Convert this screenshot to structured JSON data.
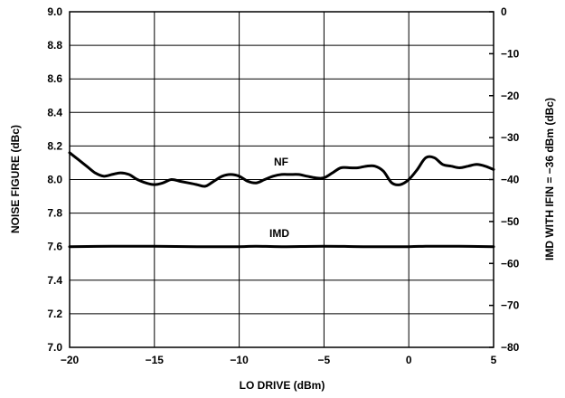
{
  "chart_data": {
    "type": "line",
    "xlabel": "LO DRIVE (dBm)",
    "ylabel_left": "NOISE FIGURE (dBc)",
    "ylabel_right": "IMD WITH IFIN = −36 dBm (dBc)",
    "xlim": [
      -20,
      5
    ],
    "ylim_left": [
      7.0,
      9.0
    ],
    "ylim_right": [
      -80,
      0
    ],
    "grid": true,
    "x_ticks": [
      "−20",
      "−15",
      "−10",
      "−5",
      "0",
      "5"
    ],
    "y_left_ticks": [
      "7.0",
      "7.2",
      "7.4",
      "7.6",
      "7.8",
      "8.0",
      "8.2",
      "8.4",
      "8.6",
      "8.8",
      "9.0"
    ],
    "y_right_ticks": [
      "−80",
      "−70",
      "−60",
      "−50",
      "−40",
      "−30",
      "−20",
      "−10",
      "0"
    ],
    "series": [
      {
        "name": "NF",
        "axis": "left",
        "x": [
          -20,
          -19.5,
          -19,
          -18.5,
          -18,
          -17.5,
          -17,
          -16.5,
          -16,
          -15.5,
          -15,
          -14.5,
          -14,
          -13.5,
          -13,
          -12.5,
          -12,
          -11.5,
          -11,
          -10.5,
          -10,
          -9.5,
          -9,
          -8.5,
          -8,
          -7.5,
          -7,
          -6.5,
          -6,
          -5.5,
          -5,
          -4.5,
          -4,
          -3.5,
          -3,
          -2.5,
          -2,
          -1.5,
          -1,
          -0.5,
          0,
          0.5,
          1,
          1.5,
          2,
          2.5,
          3,
          3.5,
          4,
          4.5,
          5
        ],
        "values": [
          8.16,
          8.12,
          8.08,
          8.04,
          8.02,
          8.03,
          8.04,
          8.03,
          8.0,
          7.98,
          7.97,
          7.98,
          8.0,
          7.99,
          7.98,
          7.97,
          7.96,
          7.99,
          8.02,
          8.03,
          8.02,
          7.99,
          7.98,
          8.0,
          8.02,
          8.03,
          8.03,
          8.03,
          8.02,
          8.01,
          8.01,
          8.04,
          8.07,
          8.07,
          8.07,
          8.08,
          8.08,
          8.05,
          7.98,
          7.97,
          8.0,
          8.06,
          8.13,
          8.13,
          8.09,
          8.08,
          8.07,
          8.08,
          8.09,
          8.08,
          8.06
        ]
      },
      {
        "name": "IMD",
        "axis": "right",
        "x": [
          -20,
          -17.5,
          -15,
          -12.5,
          -10,
          -9,
          -7.5,
          -5,
          -2.5,
          0,
          1,
          2.5,
          5
        ],
        "values": [
          -56,
          -55.9,
          -55.9,
          -56,
          -56,
          -55.9,
          -56,
          -55.9,
          -56,
          -56,
          -55.9,
          -55.9,
          -56
        ]
      }
    ]
  }
}
